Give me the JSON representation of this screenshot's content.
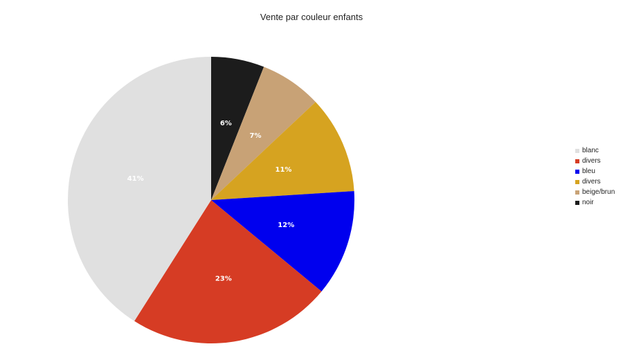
{
  "chart_data": {
    "type": "pie",
    "title": "Vente par couleur enfants",
    "slices": [
      {
        "label": "noir",
        "value": 6,
        "display": "6%",
        "color": "#1c1c1c"
      },
      {
        "label": "beige/brun",
        "value": 7,
        "display": "7%",
        "color": "#c8a276"
      },
      {
        "label": "divers",
        "value": 11,
        "display": "11%",
        "color": "#d6a320"
      },
      {
        "label": "bleu",
        "value": 12,
        "display": "12%",
        "color": "#0000ee"
      },
      {
        "label": "divers",
        "value": 23,
        "display": "23%",
        "color": "#d63c24"
      },
      {
        "label": "blanc",
        "value": 41,
        "display": "41%",
        "color": "#e0e0e0"
      }
    ],
    "legend": {
      "position": "right",
      "items": [
        {
          "label": "blanc",
          "color": "#e0e0e0"
        },
        {
          "label": "divers",
          "color": "#d63c24"
        },
        {
          "label": "bleu",
          "color": "#0000ee"
        },
        {
          "label": "divers",
          "color": "#d6a320"
        },
        {
          "label": "beige/brun",
          "color": "#c8a276"
        },
        {
          "label": "noir",
          "color": "#1c1c1c"
        }
      ]
    }
  }
}
